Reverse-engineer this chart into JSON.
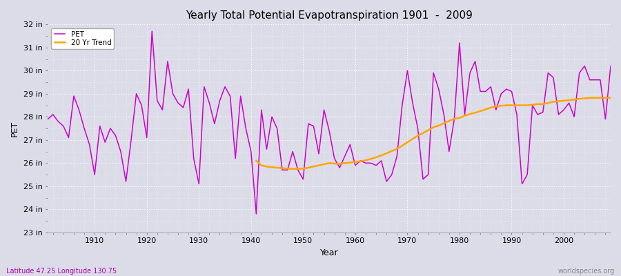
{
  "title": "Yearly Total Potential Evapotranspiration 1901  -  2009",
  "xlabel": "Year",
  "ylabel": "PET",
  "subtitle_left": "Latitude 47.25 Longitude 130.75",
  "subtitle_right": "worldspecies.org",
  "pet_color": "#cc00cc",
  "trend_color": "#ffa500",
  "bg_color": "#dcdce8",
  "plot_bg_color": "#dcdce8",
  "ylim": [
    23,
    32
  ],
  "years": [
    1901,
    1902,
    1903,
    1904,
    1905,
    1906,
    1907,
    1908,
    1909,
    1910,
    1911,
    1912,
    1913,
    1914,
    1915,
    1916,
    1917,
    1918,
    1919,
    1920,
    1921,
    1922,
    1923,
    1924,
    1925,
    1926,
    1927,
    1928,
    1929,
    1930,
    1931,
    1932,
    1933,
    1934,
    1935,
    1936,
    1937,
    1938,
    1939,
    1940,
    1941,
    1942,
    1943,
    1944,
    1945,
    1946,
    1947,
    1948,
    1949,
    1950,
    1951,
    1952,
    1953,
    1954,
    1955,
    1956,
    1957,
    1958,
    1959,
    1960,
    1961,
    1962,
    1963,
    1964,
    1965,
    1966,
    1967,
    1968,
    1969,
    1970,
    1971,
    1972,
    1973,
    1974,
    1975,
    1976,
    1977,
    1978,
    1979,
    1980,
    1981,
    1982,
    1983,
    1984,
    1985,
    1986,
    1987,
    1988,
    1989,
    1990,
    1991,
    1992,
    1993,
    1994,
    1995,
    1996,
    1997,
    1998,
    1999,
    2000,
    2001,
    2002,
    2003,
    2004,
    2005,
    2006,
    2007,
    2008,
    2009
  ],
  "pet_values": [
    27.9,
    28.1,
    27.8,
    27.6,
    27.1,
    28.9,
    28.3,
    27.5,
    26.8,
    25.5,
    27.6,
    26.9,
    27.5,
    27.2,
    26.5,
    25.2,
    27.0,
    29.0,
    28.5,
    27.1,
    31.7,
    28.7,
    28.3,
    30.4,
    29.0,
    28.6,
    28.4,
    29.2,
    26.2,
    25.1,
    29.3,
    28.6,
    27.7,
    28.7,
    29.3,
    28.9,
    26.2,
    28.9,
    27.5,
    26.5,
    23.8,
    28.3,
    26.6,
    28.0,
    27.5,
    25.7,
    25.7,
    26.5,
    25.7,
    25.3,
    27.7,
    27.6,
    26.4,
    28.3,
    27.4,
    26.2,
    25.8,
    26.3,
    26.8,
    25.9,
    26.1,
    26.0,
    26.0,
    25.9,
    26.1,
    25.2,
    25.5,
    26.3,
    28.5,
    30.0,
    28.6,
    27.5,
    25.3,
    25.5,
    29.9,
    29.2,
    28.1,
    26.5,
    27.9,
    31.2,
    28.1,
    29.9,
    30.4,
    29.1,
    29.1,
    29.3,
    28.3,
    29.0,
    29.2,
    29.1,
    28.1,
    25.1,
    25.5,
    28.5,
    28.1,
    28.2,
    29.9,
    29.7,
    28.1,
    28.3,
    28.6,
    28.0,
    29.9,
    30.2,
    29.6,
    29.6,
    29.6,
    27.9,
    30.2
  ],
  "trend_values_years": [
    1941,
    1942,
    1943,
    1944,
    1945,
    1946,
    1947,
    1948,
    1949,
    1950,
    1951,
    1952,
    1953,
    1954,
    1955,
    1956,
    1957,
    1958,
    1959,
    1960,
    1961,
    1962,
    1963,
    1964,
    1965,
    1966,
    1967,
    1968,
    1969,
    1970,
    1971,
    1972,
    1973,
    1974,
    1975,
    1976,
    1977,
    1978,
    1979,
    1980,
    1981,
    1982,
    1983,
    1984,
    1985,
    1986,
    1987,
    1988,
    1989,
    1990,
    1991,
    1992,
    1993,
    1994,
    1995,
    1996,
    1997,
    1998,
    1999,
    2000,
    2001,
    2002,
    2003,
    2004,
    2005,
    2006,
    2007,
    2008,
    2009
  ],
  "trend_values": [
    26.1,
    25.9,
    25.85,
    25.82,
    25.8,
    25.78,
    25.76,
    25.75,
    25.75,
    25.76,
    25.8,
    25.85,
    25.9,
    25.95,
    26.0,
    25.98,
    25.96,
    26.0,
    26.02,
    26.05,
    26.08,
    26.12,
    26.18,
    26.25,
    26.33,
    26.42,
    26.52,
    26.62,
    26.75,
    26.9,
    27.05,
    27.18,
    27.3,
    27.42,
    27.55,
    27.62,
    27.72,
    27.82,
    27.92,
    27.95,
    28.05,
    28.12,
    28.18,
    28.25,
    28.32,
    28.4,
    28.45,
    28.48,
    28.5,
    28.5,
    28.5,
    28.5,
    28.5,
    28.52,
    28.55,
    28.55,
    28.6,
    28.65,
    28.68,
    28.7,
    28.72,
    28.75,
    28.78,
    28.8,
    28.82,
    28.82,
    28.82,
    28.82,
    28.82
  ]
}
